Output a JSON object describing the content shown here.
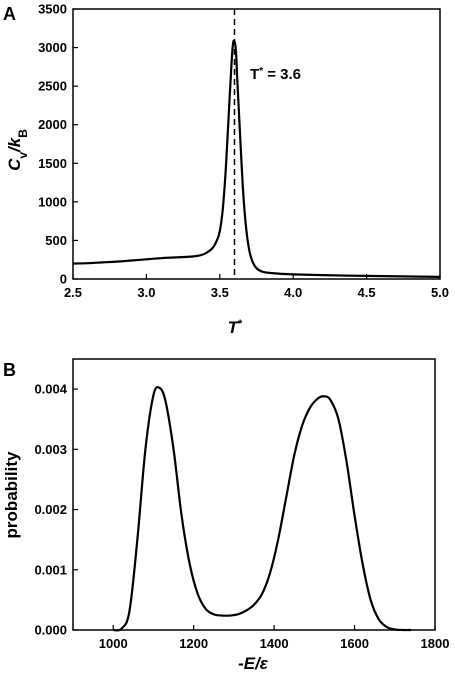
{
  "chart_data": [
    {
      "panel": "A",
      "type": "line",
      "xlabel_main": "T",
      "xlabel_sup": "*",
      "ylabel_main": "C",
      "ylabel_sub1": "v",
      "ylabel_mid": "/k",
      "ylabel_sub2": "B",
      "xlim": [
        2.5,
        5.0
      ],
      "ylim": [
        0,
        3500
      ],
      "xticks": [
        2.5,
        3.0,
        3.5,
        4.0,
        4.5,
        5.0
      ],
      "xtick_labels": [
        "2.5",
        "3.0",
        "3.5",
        "4.0",
        "4.5",
        "5.0"
      ],
      "yticks": [
        0,
        500,
        1000,
        1500,
        2000,
        2500,
        3000,
        3500
      ],
      "ytick_labels": [
        "0",
        "500",
        "1000",
        "1500",
        "2000",
        "2500",
        "3000",
        "3500"
      ],
      "annotation": {
        "prefix": "T",
        "sup": "*",
        "value_text": " = 3.6",
        "x": 3.6
      },
      "series": [
        {
          "x": [
            2.5,
            2.6,
            2.7,
            2.8,
            2.9,
            3.0,
            3.1,
            3.2,
            3.3,
            3.35,
            3.4,
            3.45,
            3.48,
            3.5,
            3.52,
            3.54,
            3.56,
            3.58,
            3.59,
            3.6,
            3.61,
            3.62,
            3.64,
            3.66,
            3.68,
            3.7,
            3.72,
            3.75,
            3.8,
            3.9,
            4.0,
            4.2,
            4.5,
            4.8,
            5.0
          ],
          "y": [
            200,
            205,
            215,
            225,
            240,
            255,
            270,
            280,
            290,
            300,
            330,
            400,
            500,
            620,
            900,
            1400,
            2100,
            2800,
            3050,
            3080,
            2950,
            2550,
            1800,
            1100,
            650,
            380,
            240,
            140,
            90,
            70,
            60,
            50,
            40,
            32,
            28
          ]
        }
      ]
    },
    {
      "panel": "B",
      "type": "line",
      "xlabel": "-E/ε",
      "ylabel": "probability",
      "xlim": [
        900,
        1800
      ],
      "ylim": [
        0,
        0.0045
      ],
      "xticks": [
        1000,
        1200,
        1400,
        1600,
        1800
      ],
      "xtick_labels": [
        "1000",
        "1200",
        "1400",
        "1600",
        "1800"
      ],
      "yticks": [
        0,
        0.001,
        0.002,
        0.003,
        0.004
      ],
      "ytick_labels": [
        "0.000",
        "0.001",
        "0.002",
        "0.003",
        "0.004"
      ],
      "series": [
        {
          "x": [
            1000,
            1020,
            1040,
            1060,
            1080,
            1100,
            1115,
            1130,
            1150,
            1170,
            1190,
            1210,
            1230,
            1250,
            1270,
            1290,
            1310,
            1330,
            1350,
            1370,
            1390,
            1410,
            1430,
            1450,
            1470,
            1490,
            1510,
            1525,
            1540,
            1560,
            1580,
            1600,
            1620,
            1640,
            1660,
            1680,
            1700,
            1720,
            1740
          ],
          "y": [
            0,
            2e-05,
            0.0003,
            0.0015,
            0.003,
            0.0039,
            0.00402,
            0.0038,
            0.003,
            0.0019,
            0.0011,
            0.0006,
            0.00035,
            0.00026,
            0.00024,
            0.00024,
            0.00026,
            0.00032,
            0.00042,
            0.0006,
            0.00095,
            0.0015,
            0.0022,
            0.0029,
            0.0034,
            0.0037,
            0.00385,
            0.00388,
            0.00382,
            0.0035,
            0.0028,
            0.0019,
            0.0011,
            0.0005,
            0.00018,
            5e-05,
            1e-05,
            0,
            0
          ]
        }
      ]
    }
  ]
}
